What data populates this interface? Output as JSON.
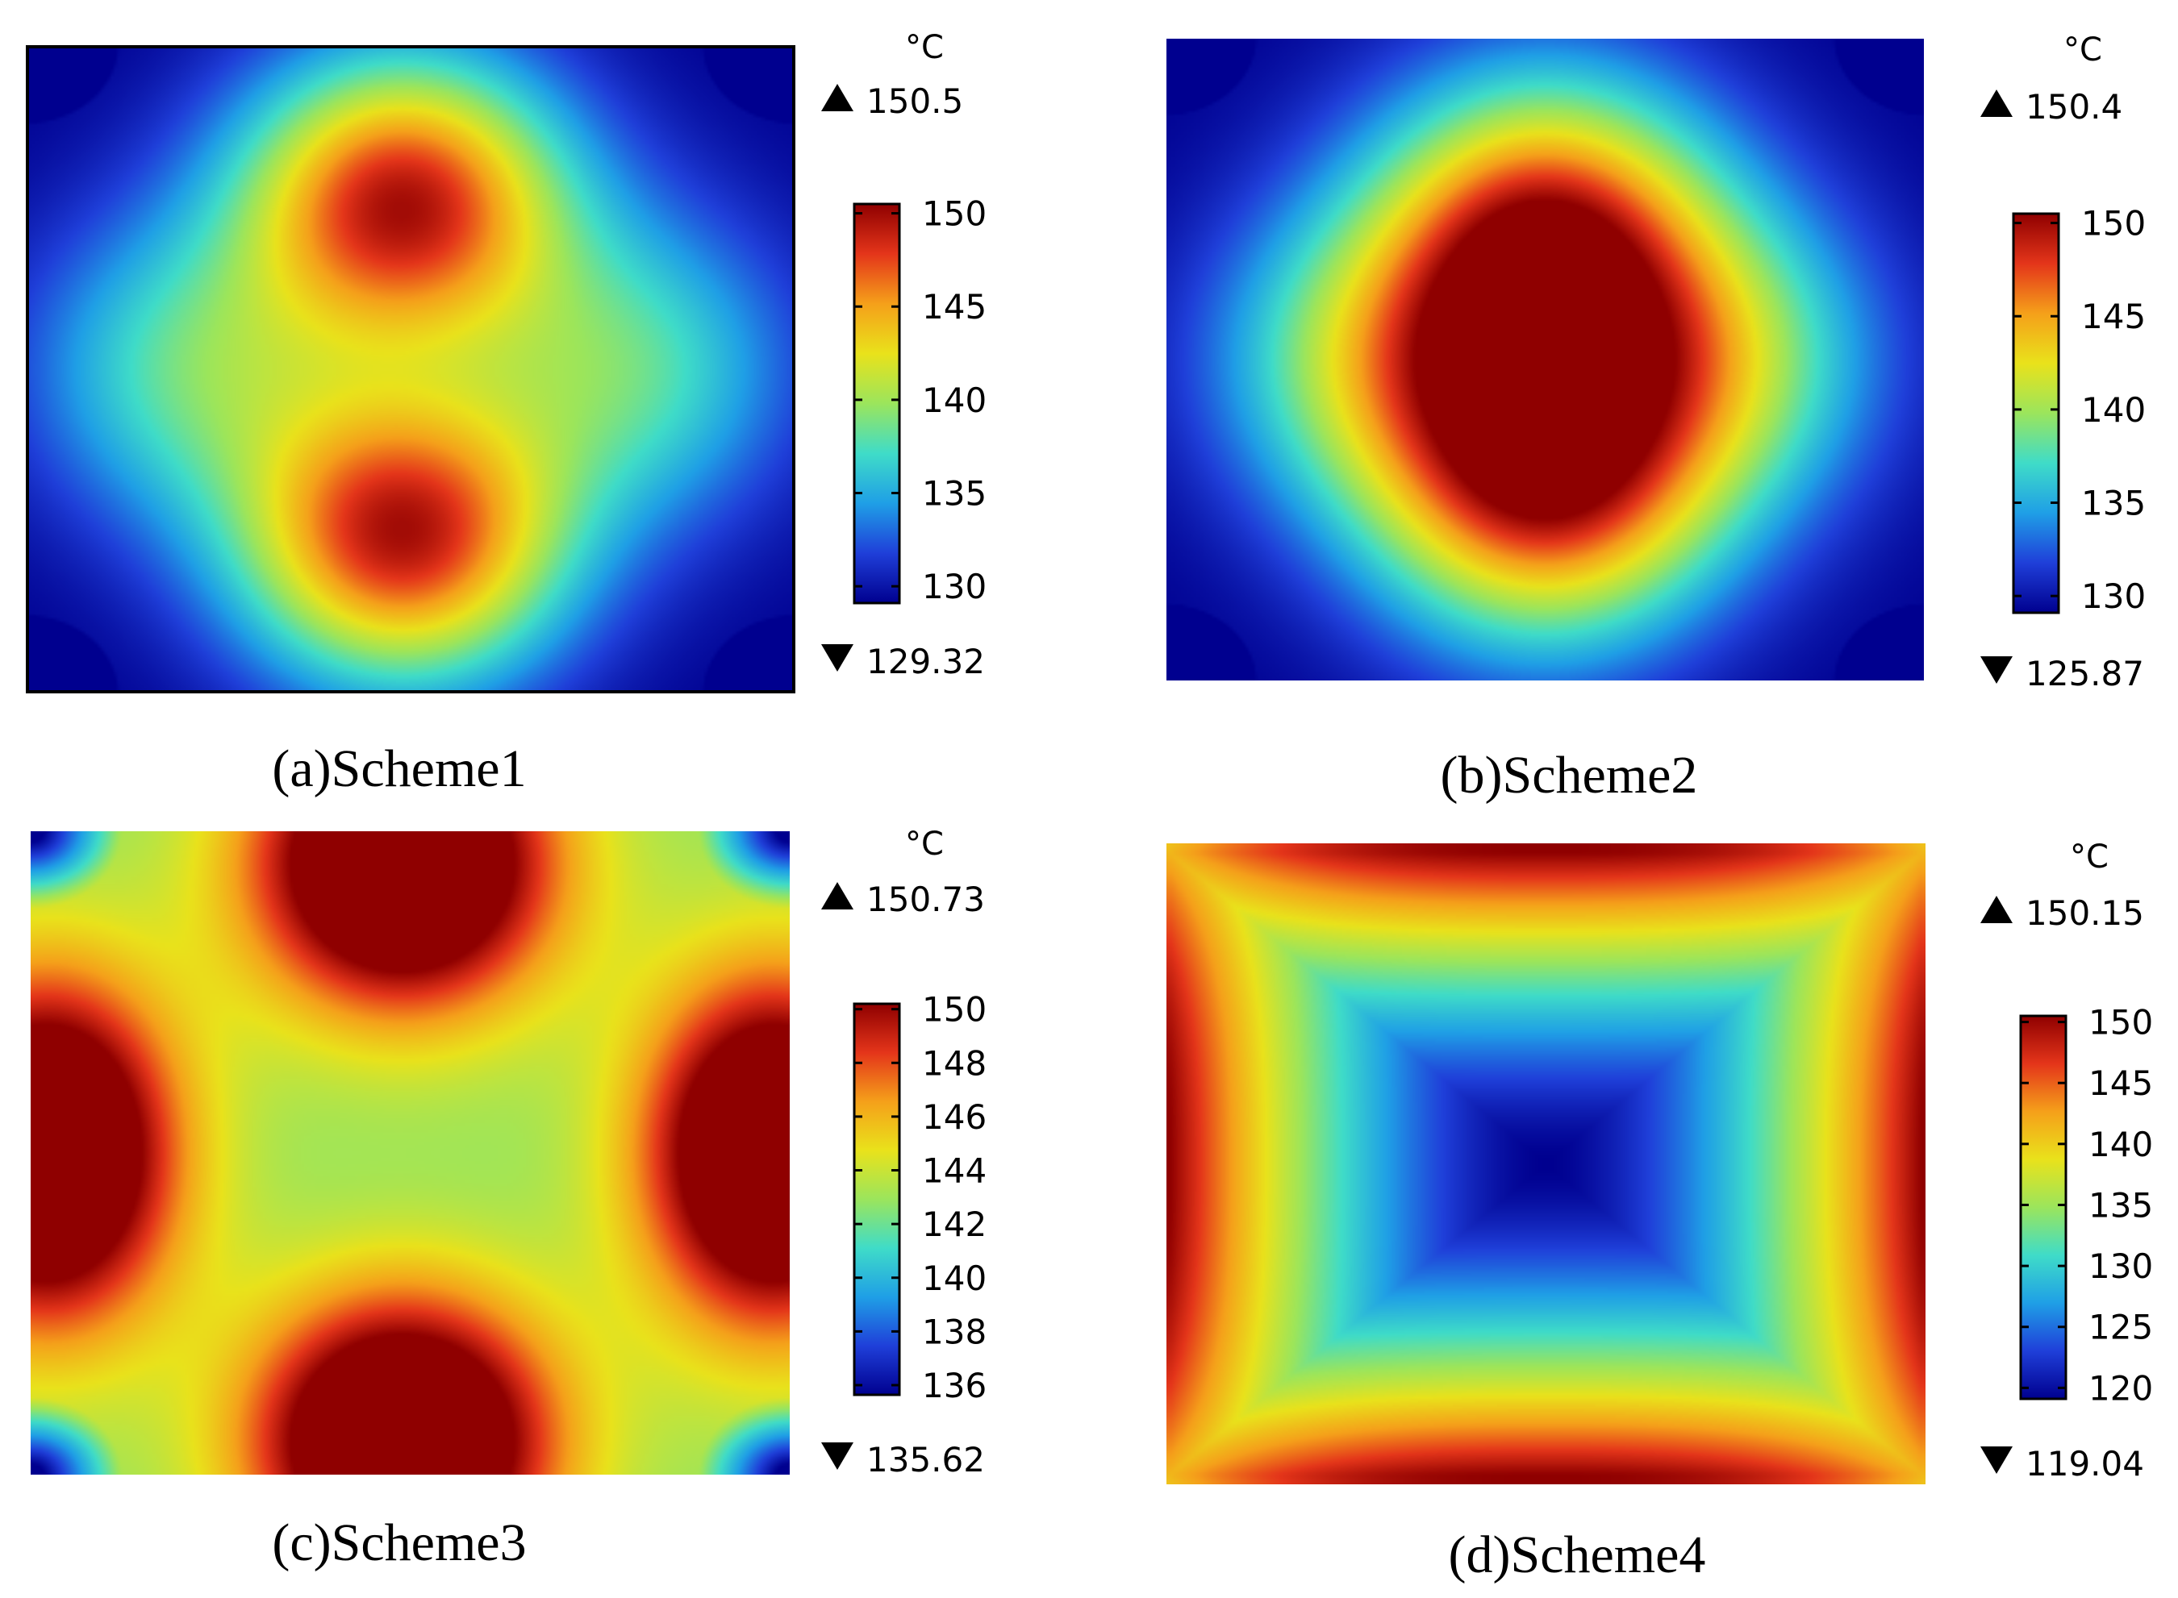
{
  "colors": {
    "colormap": [
      "#00008f",
      "#1f3fd9",
      "#1f9fe6",
      "#3fdcc8",
      "#9be55c",
      "#e9e21b",
      "#f5a01a",
      "#e4351a",
      "#8f0000"
    ],
    "frame": "#000000",
    "text": "#000000",
    "background": "#ffffff"
  },
  "chart_data": [
    {
      "type": "heatmap",
      "caption": "(a)Scheme1",
      "unit": "°C",
      "max_label": "150.5",
      "min_label": "129.32",
      "max": 150.5,
      "min": 129.32,
      "colorbar_ticks": [
        "150",
        "145",
        "140",
        "135",
        "130"
      ],
      "pattern": "four-lobe",
      "frame": true,
      "spots": [
        {
          "x": 0.49,
          "y": 0.24,
          "sx": 0.15,
          "sy": 0.16,
          "amp": 150
        },
        {
          "x": 0.49,
          "y": 0.76,
          "sx": 0.15,
          "sy": 0.16,
          "amp": 150
        },
        {
          "x": 0.21,
          "y": 0.5,
          "sx": 0.15,
          "sy": 0.17,
          "amp": 138
        },
        {
          "x": 0.79,
          "y": 0.5,
          "sx": 0.15,
          "sy": 0.17,
          "amp": 138
        }
      ]
    },
    {
      "type": "heatmap",
      "caption": "(b)Scheme2",
      "unit": "°C",
      "max_label": "150.4",
      "min_label": "125.87",
      "max": 150.4,
      "min": 125.87,
      "colorbar_ticks": [
        "150",
        "145",
        "140",
        "135",
        "130"
      ],
      "pattern": "four-lobe",
      "frame": false,
      "spots": [
        {
          "x": 0.5,
          "y": 0.32,
          "sx": 0.16,
          "sy": 0.18,
          "amp": 150
        },
        {
          "x": 0.5,
          "y": 0.68,
          "sx": 0.16,
          "sy": 0.18,
          "amp": 150
        },
        {
          "x": 0.26,
          "y": 0.5,
          "sx": 0.15,
          "sy": 0.17,
          "amp": 136
        },
        {
          "x": 0.74,
          "y": 0.5,
          "sx": 0.15,
          "sy": 0.17,
          "amp": 136
        }
      ]
    },
    {
      "type": "heatmap",
      "caption": "(c)Scheme3",
      "unit": "°C",
      "max_label": "150.73",
      "min_label": "135.62",
      "max": 150.73,
      "min": 135.62,
      "colorbar_ticks": [
        "150",
        "148",
        "146",
        "144",
        "142",
        "140",
        "138",
        "136"
      ],
      "pattern": "edge-spots",
      "frame": false,
      "spots": [
        {
          "x": 0.49,
          "y": 0.05,
          "sx": 0.14,
          "sy": 0.16,
          "amp": 150
        },
        {
          "x": 0.49,
          "y": 0.95,
          "sx": 0.14,
          "sy": 0.16,
          "amp": 150
        },
        {
          "x": 0.02,
          "y": 0.5,
          "sx": 0.12,
          "sy": 0.19,
          "amp": 150
        },
        {
          "x": 0.98,
          "y": 0.5,
          "sx": 0.12,
          "sy": 0.19,
          "amp": 150
        }
      ]
    },
    {
      "type": "heatmap",
      "caption": "(d)Scheme4",
      "unit": "°C",
      "max_label": "150.15",
      "min_label": "119.04",
      "max": 150.15,
      "min": 119.04,
      "colorbar_ticks": [
        "150",
        "145",
        "140",
        "135",
        "130",
        "125",
        "120"
      ],
      "pattern": "ring",
      "frame": false,
      "spots": []
    }
  ]
}
